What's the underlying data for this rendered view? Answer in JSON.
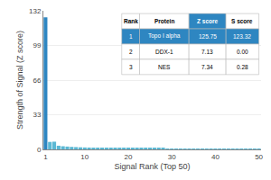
{
  "chart_data": {
    "type": "bar",
    "xlabel": "Signal Rank (Top 50)",
    "ylabel": "Strength of Signal (Z score)",
    "x": [
      1,
      2,
      3,
      4,
      5,
      6,
      7,
      8,
      9,
      10,
      11,
      12,
      13,
      14,
      15,
      16,
      17,
      18,
      19,
      20,
      21,
      22,
      23,
      24,
      25,
      26,
      27,
      28,
      29,
      30,
      31,
      32,
      33,
      34,
      35,
      36,
      37,
      38,
      39,
      40,
      41,
      42,
      43,
      44,
      45,
      46,
      47,
      48,
      49,
      50
    ],
    "values": [
      125.75,
      7.13,
      7.34,
      3.5,
      3.0,
      2.7,
      2.4,
      2.2,
      2.0,
      1.85,
      1.75,
      1.65,
      1.55,
      1.48,
      1.42,
      1.36,
      1.3,
      1.25,
      1.2,
      1.15,
      1.1,
      1.06,
      1.02,
      0.99,
      0.96,
      0.93,
      0.9,
      0.87,
      0.84,
      0.81,
      0.79,
      0.77,
      0.75,
      0.73,
      0.71,
      0.69,
      0.67,
      0.65,
      0.63,
      0.61,
      0.59,
      0.57,
      0.55,
      0.53,
      0.51,
      0.49,
      0.47,
      0.45,
      0.43,
      0.41
    ],
    "colors": [
      "#2e86c1",
      "#5bb8d4",
      "#5bb8d4",
      "#5bb8d4",
      "#5bb8d4",
      "#5bb8d4",
      "#5bb8d4",
      "#5bb8d4",
      "#5bb8d4",
      "#5bb8d4",
      "#5bb8d4",
      "#5bb8d4",
      "#5bb8d4",
      "#5bb8d4",
      "#5bb8d4",
      "#5bb8d4",
      "#5bb8d4",
      "#5bb8d4",
      "#5bb8d4",
      "#5bb8d4",
      "#5bb8d4",
      "#5bb8d4",
      "#5bb8d4",
      "#5bb8d4",
      "#5bb8d4",
      "#5bb8d4",
      "#5bb8d4",
      "#5bb8d4",
      "#5bb8d4",
      "#5bb8d4",
      "#5bb8d4",
      "#5bb8d4",
      "#5bb8d4",
      "#5bb8d4",
      "#5bb8d4",
      "#5bb8d4",
      "#5bb8d4",
      "#5bb8d4",
      "#5bb8d4",
      "#5bb8d4",
      "#5bb8d4",
      "#5bb8d4",
      "#5bb8d4",
      "#5bb8d4",
      "#5bb8d4",
      "#5bb8d4",
      "#5bb8d4",
      "#5bb8d4",
      "#5bb8d4",
      "#5bb8d4"
    ],
    "xlim": [
      0.5,
      50.5
    ],
    "xticks": [
      1,
      10,
      20,
      30,
      40,
      50
    ],
    "ylim": [
      0,
      132
    ],
    "yticks": [
      0,
      33,
      66,
      99,
      132
    ],
    "grid": true,
    "table": {
      "headers": [
        "Rank",
        "Protein",
        "Z score",
        "S score"
      ],
      "rows": [
        [
          "1",
          "Topo I alpha",
          "125.75",
          "123.32"
        ],
        [
          "2",
          "DDX-1",
          "7.13",
          "0.00"
        ],
        [
          "3",
          "NES",
          "7.34",
          "0.28"
        ]
      ]
    }
  }
}
